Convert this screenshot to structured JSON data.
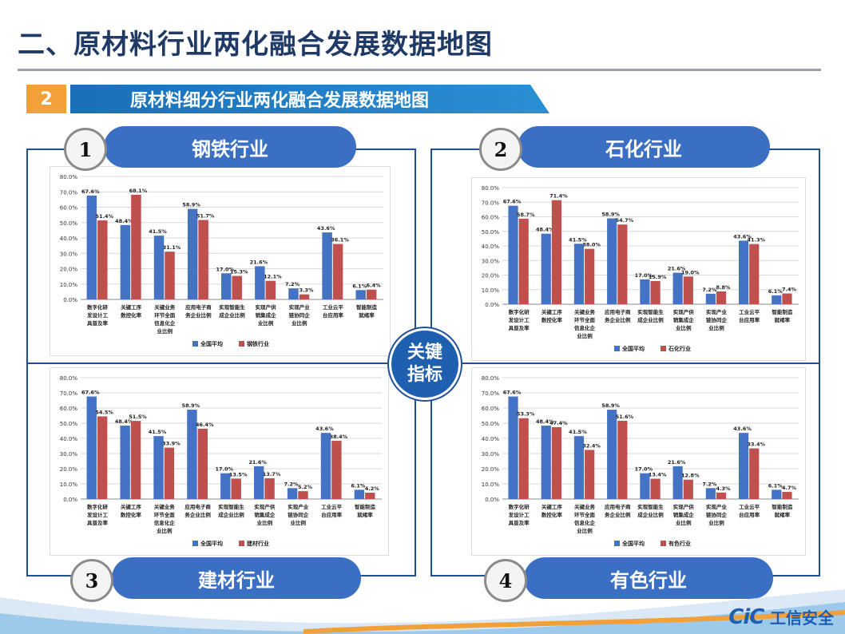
{
  "page": {
    "title": "二、原材料行业两化融合发展数据地图",
    "section_number": "2",
    "section_title": "原材料细分行业两化融合发展数据地图",
    "center_label": "关键指标",
    "logo_cic": "CiC",
    "logo_text": "工信安全",
    "colors": {
      "national": "#4472c4",
      "industry": "#c0504d",
      "frame": "#1f4f9a",
      "accent": "#f2a03a"
    }
  },
  "panels": [
    {
      "number": "1",
      "label": "钢铁行业"
    },
    {
      "number": "2",
      "label": "石化行业"
    },
    {
      "number": "3",
      "label": "建材行业"
    },
    {
      "number": "4",
      "label": "有色行业"
    }
  ],
  "chart_data": [
    {
      "type": "bar",
      "categories": [
        "数字化研发设计工具普及率",
        "关键工序数控化率",
        "关键业务环节全面信息化企业比例",
        "应用电子商务企业比例",
        "实现智能制造成企业比例",
        "实现产供销集成企业比例",
        "实现产业链协同企业比例",
        "工业云平台应用率",
        "智能制造就绪率"
      ],
      "series": [
        {
          "name": "全国平均",
          "values": [
            67.6,
            48.4,
            41.5,
            58.9,
            17.0,
            21.6,
            7.2,
            43.6,
            6.1
          ]
        },
        {
          "name": "钢铁行业",
          "values": [
            51.4,
            68.1,
            31.1,
            51.7,
            15.3,
            12.1,
            3.3,
            36.1,
            6.4
          ]
        }
      ],
      "ylim": [
        0,
        80
      ],
      "yticks": [
        "0.0%",
        "10.0%",
        "20.0%",
        "30.0%",
        "40.0%",
        "50.0%",
        "60.0%",
        "70.0%",
        "80.0%"
      ],
      "category_lines": [
        [
          "数字化研",
          "发设计工",
          "具普及率"
        ],
        [
          "关键工序",
          "数控化率"
        ],
        [
          "关键业务",
          "环节全面",
          "信息化企",
          "业比例"
        ],
        [
          "应用电子商",
          "务企业比例"
        ],
        [
          "实现智能生",
          "成企业比例"
        ],
        [
          "实现产供",
          "销集成企",
          "业比例"
        ],
        [
          "实现产业",
          "链协同企",
          "业比例"
        ],
        [
          "工业云平",
          "台应用率"
        ],
        [
          "智能制造",
          "就绪率"
        ]
      ],
      "grid": true,
      "legend": "bottom"
    },
    {
      "type": "bar",
      "categories": [
        "数字化研发设计工具普及率",
        "关键工序数控化率",
        "关键业务环节全面信息化企业比例",
        "应用电子商务企业比例",
        "实现智能制造成企业比例",
        "实现产供销集成企业比例",
        "实现产业链协同企业比例",
        "工业云平台应用率",
        "智能制造就绪率"
      ],
      "series": [
        {
          "name": "全国平均",
          "values": [
            67.6,
            48.4,
            41.5,
            58.9,
            17.0,
            21.6,
            7.2,
            43.6,
            6.1
          ]
        },
        {
          "name": "石化行业",
          "values": [
            58.7,
            71.4,
            38.0,
            54.7,
            15.9,
            19.0,
            8.8,
            41.3,
            7.4
          ]
        }
      ],
      "ylim": [
        0,
        80
      ],
      "yticks": [
        "0.0%",
        "10.0%",
        "20.0%",
        "30.0%",
        "40.0%",
        "50.0%",
        "60.0%",
        "70.0%",
        "80.0%"
      ],
      "category_lines": [
        [
          "数字化研",
          "发设计工",
          "具普及率"
        ],
        [
          "关键工序",
          "数控化率"
        ],
        [
          "关键业务",
          "环节全面",
          "信息化企",
          "业比例"
        ],
        [
          "应用电子商",
          "务企业比例"
        ],
        [
          "实现智能生",
          "成企业比例"
        ],
        [
          "实现产供",
          "销集成企",
          "业比例"
        ],
        [
          "实现产业",
          "链协同企",
          "业比例"
        ],
        [
          "工业云平",
          "台应用率"
        ],
        [
          "智能制造",
          "就绪率"
        ]
      ],
      "grid": true,
      "legend": "bottom"
    },
    {
      "type": "bar",
      "categories": [
        "数字化研发设计工具普及率",
        "关键工序数控化率",
        "关键业务环节全面信息化企业比例",
        "应用电子商务企业比例",
        "实现智能制造成企业比例",
        "实现产供销集成企业比例",
        "实现产业链协同企业比例",
        "工业云平台应用率",
        "智能制造就绪率"
      ],
      "series": [
        {
          "name": "全国平均",
          "values": [
            67.6,
            48.4,
            41.5,
            58.9,
            17.0,
            21.6,
            7.2,
            43.6,
            6.1
          ]
        },
        {
          "name": "建材行业",
          "values": [
            54.5,
            51.5,
            33.9,
            46.4,
            13.5,
            13.7,
            5.2,
            38.4,
            4.2
          ]
        }
      ],
      "ylim": [
        0,
        80
      ],
      "yticks": [
        "0.0%",
        "10.0%",
        "20.0%",
        "30.0%",
        "40.0%",
        "50.0%",
        "60.0%",
        "70.0%",
        "80.0%"
      ],
      "category_lines": [
        [
          "数字化研",
          "发设计工",
          "具普及率"
        ],
        [
          "关键工序",
          "数控化率"
        ],
        [
          "关键业务",
          "环节全面",
          "信息化企",
          "业比例"
        ],
        [
          "应用电子商",
          "务企业比例"
        ],
        [
          "实现智能生",
          "成企业比例"
        ],
        [
          "实现产供",
          "销集成企",
          "业比例"
        ],
        [
          "实现产业",
          "链协同企",
          "业比例"
        ],
        [
          "工业云平",
          "台应用率"
        ],
        [
          "智能制造",
          "就绪率"
        ]
      ],
      "grid": true,
      "legend": "bottom"
    },
    {
      "type": "bar",
      "categories": [
        "数字化研发设计工具普及率",
        "关键工序数控化率",
        "关键业务环节全面信息化企业比例",
        "应用电子商务企业比例",
        "实现智能制造成企业比例",
        "实现产供销集成企业比例",
        "实现产业链协同企业比例",
        "工业云平台应用率",
        "智能制造就绪率"
      ],
      "series": [
        {
          "name": "全国平均",
          "values": [
            67.6,
            48.4,
            41.5,
            58.9,
            17.0,
            21.6,
            7.2,
            43.6,
            6.1
          ]
        },
        {
          "name": "有色行业",
          "values": [
            53.3,
            47.4,
            32.4,
            51.6,
            13.4,
            12.8,
            4.3,
            33.4,
            4.7
          ]
        }
      ],
      "ylim": [
        0,
        80
      ],
      "yticks": [
        "0.0%",
        "10.0%",
        "20.0%",
        "30.0%",
        "40.0%",
        "50.0%",
        "60.0%",
        "70.0%",
        "80.0%"
      ],
      "category_lines": [
        [
          "数字化研",
          "发设计工",
          "具普及率"
        ],
        [
          "关键工序",
          "数控化率"
        ],
        [
          "关键业务",
          "环节全面",
          "信息化企",
          "业比例"
        ],
        [
          "应用电子商",
          "务企业比例"
        ],
        [
          "实现智能生",
          "成企业比例"
        ],
        [
          "实现产供",
          "销集成企",
          "业比例"
        ],
        [
          "实现产业",
          "链协同企",
          "业比例"
        ],
        [
          "工业云平",
          "台应用率"
        ],
        [
          "智能制造",
          "就绪率"
        ]
      ],
      "grid": true,
      "legend": "bottom"
    }
  ]
}
